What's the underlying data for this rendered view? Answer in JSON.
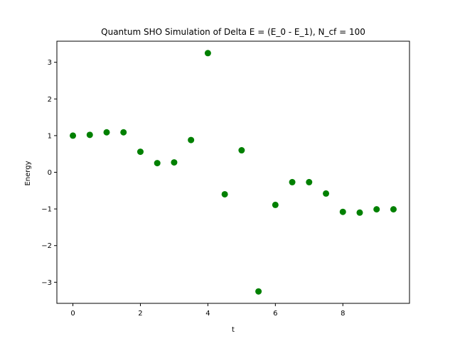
{
  "chart_data": {
    "type": "scatter",
    "title": "Quantum SHO Simulation of Delta E = (E_0 - E_1), N_cf = 100",
    "xlabel": "t",
    "ylabel": "Energy",
    "xlim": [
      -0.475,
      9.975
    ],
    "ylim": [
      -3.575,
      3.575
    ],
    "xticks": [
      0,
      2,
      4,
      6,
      8
    ],
    "xtick_labels": [
      "0",
      "2",
      "4",
      "6",
      "8"
    ],
    "yticks": [
      -3,
      -2,
      -1,
      0,
      1,
      2,
      3
    ],
    "ytick_labels": [
      "−3",
      "−2",
      "−1",
      "0",
      "1",
      "2",
      "3"
    ],
    "grid": false,
    "marker_color": "#008000",
    "series": [
      {
        "x": [
          0,
          0.5,
          1,
          1.5,
          2,
          2.5,
          3,
          3.5,
          4,
          4.5,
          5,
          5.5,
          6,
          6.5,
          7,
          7.5,
          8,
          8.5,
          9,
          9.5
        ],
        "y": [
          1.0,
          1.02,
          1.09,
          1.09,
          0.56,
          0.25,
          0.27,
          0.88,
          3.25,
          -0.6,
          0.6,
          -3.25,
          -0.89,
          -0.27,
          -0.27,
          -0.58,
          -1.08,
          -1.1,
          -1.01,
          -1.01
        ]
      }
    ]
  }
}
